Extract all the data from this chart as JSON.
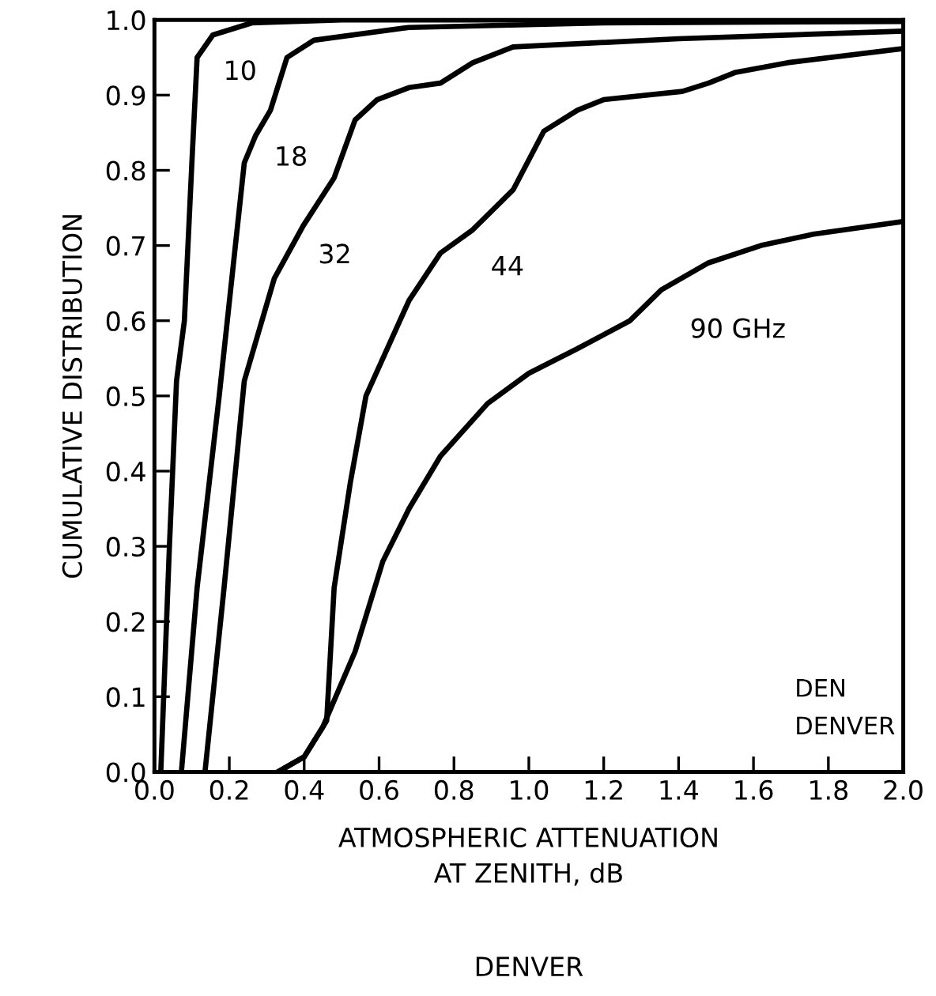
{
  "chart_data": {
    "type": "line",
    "xlabel": "ATMOSPHERIC ATTENUATION\nAT ZENITH, dB",
    "ylabel": "CUMULATIVE DISTRIBUTION",
    "xlim": [
      0,
      2.0
    ],
    "ylim": [
      0,
      1.0
    ],
    "xticks": [
      {
        "value": 0,
        "label": "0.0"
      },
      0.2,
      0.4,
      0.6,
      0.8,
      {
        "value": 1,
        "label": "1.0"
      },
      1.2,
      1.4,
      1.6,
      1.8,
      {
        "value": 2,
        "label": "2.0"
      }
    ],
    "yticks": [
      {
        "value": 0,
        "label": "0.0"
      },
      0.1,
      0.2,
      0.3,
      0.4,
      0.5,
      0.6,
      0.7,
      0.8,
      0.9,
      {
        "value": 1,
        "label": "1.0"
      }
    ],
    "grid": false,
    "legend": false,
    "marker": "none",
    "line_style": "solid",
    "series": [
      {
        "name": "10",
        "color": "#000000",
        "x": [
          0.017,
          0.04,
          0.059,
          0.08,
          0.1,
          0.114,
          0.156,
          0.26,
          0.5,
          1.0,
          2.0
        ],
        "values": [
          0,
          0.3,
          0.52,
          0.6,
          0.81,
          0.95,
          0.98,
          0.996,
          1.0,
          1.0,
          1.0
        ]
      },
      {
        "name": "18",
        "color": "#000000",
        "x": [
          0.072,
          0.114,
          0.173,
          0.24,
          0.27,
          0.31,
          0.354,
          0.426,
          0.68,
          1.2,
          2.0
        ],
        "values": [
          0,
          0.245,
          0.5,
          0.81,
          0.846,
          0.88,
          0.95,
          0.973,
          0.99,
          0.996,
          0.998
        ]
      },
      {
        "name": "32",
        "color": "#000000",
        "x": [
          0.135,
          0.186,
          0.24,
          0.32,
          0.397,
          0.48,
          0.536,
          0.595,
          0.68,
          0.764,
          0.85,
          0.958,
          1.4,
          2.0
        ],
        "values": [
          0,
          0.245,
          0.52,
          0.656,
          0.726,
          0.79,
          0.867,
          0.894,
          0.91,
          0.916,
          0.943,
          0.964,
          0.975,
          0.985
        ]
      },
      {
        "name": "44",
        "color": "#000000",
        "x": [
          0.33,
          0.4,
          0.45,
          0.46,
          0.48,
          0.523,
          0.565,
          0.68,
          0.764,
          0.848,
          0.958,
          1.04,
          1.13,
          1.2,
          1.41,
          1.48,
          1.55,
          1.69,
          2.0
        ],
        "values": [
          0,
          0.02,
          0.06,
          0.068,
          0.245,
          0.384,
          0.5,
          0.627,
          0.69,
          0.72,
          0.774,
          0.852,
          0.88,
          0.894,
          0.905,
          0.916,
          0.93,
          0.943,
          0.962
        ]
      },
      {
        "name": "90 GHz",
        "color": "#000000",
        "x": [
          0.33,
          0.4,
          0.45,
          0.536,
          0.61,
          0.68,
          0.764,
          0.89,
          1.0,
          1.13,
          1.27,
          1.354,
          1.48,
          1.62,
          1.76,
          2.0
        ],
        "values": [
          0,
          0.02,
          0.06,
          0.16,
          0.28,
          0.35,
          0.42,
          0.49,
          0.53,
          0.563,
          0.6,
          0.641,
          0.677,
          0.7,
          0.715,
          0.732
        ]
      }
    ],
    "annotations": [
      "DEN",
      "DENVER",
      "DENVER"
    ]
  }
}
